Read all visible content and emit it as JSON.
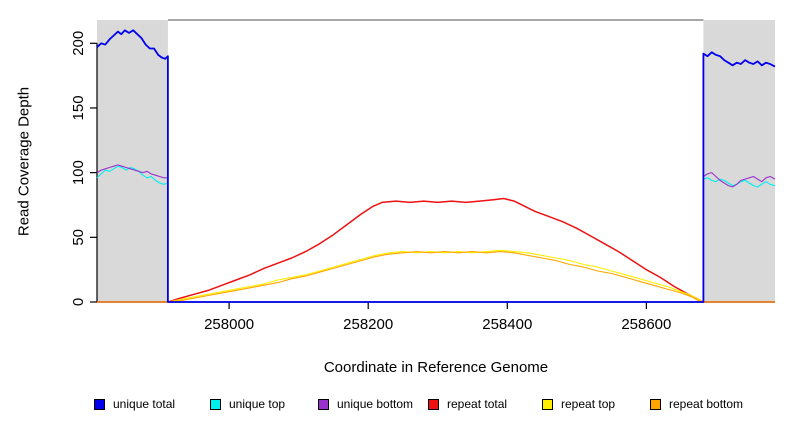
{
  "chart_data": {
    "type": "line",
    "title": "",
    "xlabel": "Coordinate in Reference Genome",
    "ylabel": "Read Coverage Depth",
    "xlim": [
      257810,
      258785
    ],
    "ylim": [
      0,
      218
    ],
    "x_ticks": [
      258000,
      258200,
      258400,
      258600
    ],
    "y_ticks": [
      0,
      50,
      100,
      150,
      200
    ],
    "grid": false,
    "legend_position": "bottom",
    "axis_color": "#000000",
    "top_border_color": "#8a8a8a",
    "shaded_regions": [
      {
        "x0": 257810,
        "x1": 257912,
        "color": "#d9d9d9"
      },
      {
        "x0": 258682,
        "x1": 258785,
        "color": "#d9d9d9"
      }
    ],
    "series": [
      {
        "name": "unique total",
        "color": "#0000ee",
        "points": [
          [
            257810,
            197
          ],
          [
            257816,
            200
          ],
          [
            257822,
            199
          ],
          [
            257828,
            203
          ],
          [
            257834,
            206
          ],
          [
            257840,
            209
          ],
          [
            257845,
            207
          ],
          [
            257850,
            210
          ],
          [
            257856,
            208
          ],
          [
            257862,
            210
          ],
          [
            257868,
            207
          ],
          [
            257874,
            204
          ],
          [
            257880,
            199
          ],
          [
            257886,
            196
          ],
          [
            257892,
            196
          ],
          [
            257898,
            191
          ],
          [
            257903,
            189
          ],
          [
            257908,
            188
          ],
          [
            257912,
            190
          ],
          [
            257912,
            0
          ],
          [
            258682,
            0
          ],
          [
            258682,
            192
          ],
          [
            258688,
            190
          ],
          [
            258694,
            193
          ],
          [
            258700,
            191
          ],
          [
            258706,
            190
          ],
          [
            258712,
            187
          ],
          [
            258718,
            185
          ],
          [
            258724,
            183
          ],
          [
            258730,
            185
          ],
          [
            258736,
            184
          ],
          [
            258742,
            187
          ],
          [
            258748,
            185
          ],
          [
            258754,
            184
          ],
          [
            258760,
            186
          ],
          [
            258766,
            183
          ],
          [
            258772,
            185
          ],
          [
            258778,
            184
          ],
          [
            258785,
            182
          ]
        ]
      },
      {
        "name": "unique top",
        "color": "#00eeee",
        "points": [
          [
            257810,
            96
          ],
          [
            257816,
            99
          ],
          [
            257822,
            102
          ],
          [
            257828,
            101
          ],
          [
            257834,
            103
          ],
          [
            257840,
            105
          ],
          [
            257846,
            104
          ],
          [
            257852,
            102
          ],
          [
            257858,
            104
          ],
          [
            257864,
            103
          ],
          [
            257870,
            101
          ],
          [
            257876,
            98
          ],
          [
            257882,
            96
          ],
          [
            257888,
            97
          ],
          [
            257894,
            94
          ],
          [
            257900,
            92
          ],
          [
            257906,
            91
          ],
          [
            257912,
            92
          ],
          [
            257912,
            0
          ],
          [
            258682,
            0
          ],
          [
            258682,
            95
          ],
          [
            258688,
            96
          ],
          [
            258694,
            94
          ],
          [
            258700,
            93
          ],
          [
            258706,
            95
          ],
          [
            258712,
            94
          ],
          [
            258718,
            92
          ],
          [
            258724,
            90
          ],
          [
            258730,
            91
          ],
          [
            258736,
            93
          ],
          [
            258742,
            94
          ],
          [
            258748,
            92
          ],
          [
            258754,
            90
          ],
          [
            258760,
            89
          ],
          [
            258766,
            91
          ],
          [
            258772,
            93
          ],
          [
            258778,
            91
          ],
          [
            258785,
            90
          ]
        ]
      },
      {
        "name": "unique bottom",
        "color": "#9932cc",
        "points": [
          [
            257810,
            100
          ],
          [
            257816,
            102
          ],
          [
            257822,
            103
          ],
          [
            257828,
            104
          ],
          [
            257834,
            105
          ],
          [
            257840,
            106
          ],
          [
            257846,
            105
          ],
          [
            257852,
            104
          ],
          [
            257858,
            103
          ],
          [
            257864,
            102
          ],
          [
            257870,
            101
          ],
          [
            257876,
            100
          ],
          [
            257882,
            101
          ],
          [
            257888,
            99
          ],
          [
            257894,
            98
          ],
          [
            257900,
            97
          ],
          [
            257906,
            96
          ],
          [
            257912,
            96
          ],
          [
            257912,
            0
          ],
          [
            258682,
            0
          ],
          [
            258682,
            97
          ],
          [
            258688,
            99
          ],
          [
            258694,
            100
          ],
          [
            258700,
            97
          ],
          [
            258706,
            94
          ],
          [
            258712,
            92
          ],
          [
            258718,
            90
          ],
          [
            258724,
            89
          ],
          [
            258730,
            91
          ],
          [
            258736,
            94
          ],
          [
            258742,
            95
          ],
          [
            258748,
            96
          ],
          [
            258754,
            97
          ],
          [
            258760,
            95
          ],
          [
            258766,
            93
          ],
          [
            258772,
            96
          ],
          [
            258778,
            97
          ],
          [
            258785,
            95
          ]
        ]
      },
      {
        "name": "repeat total",
        "color": "#ee1111",
        "points": [
          [
            257810,
            0
          ],
          [
            257912,
            0
          ],
          [
            257930,
            3
          ],
          [
            257950,
            6
          ],
          [
            257970,
            9
          ],
          [
            257990,
            13
          ],
          [
            258010,
            17
          ],
          [
            258030,
            21
          ],
          [
            258050,
            26
          ],
          [
            258070,
            30
          ],
          [
            258090,
            34
          ],
          [
            258110,
            39
          ],
          [
            258130,
            45
          ],
          [
            258150,
            52
          ],
          [
            258170,
            60
          ],
          [
            258190,
            68
          ],
          [
            258207,
            74
          ],
          [
            258220,
            77
          ],
          [
            258240,
            78
          ],
          [
            258260,
            77
          ],
          [
            258280,
            78
          ],
          [
            258300,
            77
          ],
          [
            258320,
            78
          ],
          [
            258340,
            77
          ],
          [
            258360,
            78
          ],
          [
            258380,
            79
          ],
          [
            258395,
            80
          ],
          [
            258410,
            78
          ],
          [
            258425,
            74
          ],
          [
            258440,
            70
          ],
          [
            258460,
            66
          ],
          [
            258480,
            62
          ],
          [
            258500,
            57
          ],
          [
            258520,
            51
          ],
          [
            258540,
            45
          ],
          [
            258560,
            39
          ],
          [
            258580,
            32
          ],
          [
            258600,
            25
          ],
          [
            258620,
            19
          ],
          [
            258640,
            12
          ],
          [
            258660,
            6
          ],
          [
            258675,
            2
          ],
          [
            258682,
            0
          ],
          [
            258785,
            0
          ]
        ]
      },
      {
        "name": "repeat top",
        "color": "#ffee00",
        "points": [
          [
            257810,
            0
          ],
          [
            257912,
            0
          ],
          [
            257930,
            2
          ],
          [
            257950,
            4
          ],
          [
            257970,
            6
          ],
          [
            257990,
            8
          ],
          [
            258010,
            10
          ],
          [
            258030,
            12
          ],
          [
            258050,
            14
          ],
          [
            258070,
            17
          ],
          [
            258090,
            19
          ],
          [
            258110,
            21
          ],
          [
            258130,
            24
          ],
          [
            258150,
            27
          ],
          [
            258170,
            30
          ],
          [
            258190,
            33
          ],
          [
            258210,
            36
          ],
          [
            258230,
            38
          ],
          [
            258250,
            39
          ],
          [
            258270,
            38
          ],
          [
            258290,
            39
          ],
          [
            258310,
            38
          ],
          [
            258330,
            39
          ],
          [
            258350,
            38
          ],
          [
            258370,
            39
          ],
          [
            258390,
            40
          ],
          [
            258410,
            39
          ],
          [
            258430,
            38
          ],
          [
            258450,
            36
          ],
          [
            258470,
            34
          ],
          [
            258490,
            32
          ],
          [
            258510,
            29
          ],
          [
            258530,
            27
          ],
          [
            258550,
            24
          ],
          [
            258570,
            21
          ],
          [
            258590,
            18
          ],
          [
            258610,
            15
          ],
          [
            258630,
            12
          ],
          [
            258650,
            8
          ],
          [
            258665,
            5
          ],
          [
            258675,
            2
          ],
          [
            258682,
            0
          ],
          [
            258785,
            0
          ]
        ]
      },
      {
        "name": "repeat bottom",
        "color": "#ffa500",
        "points": [
          [
            257810,
            0
          ],
          [
            257912,
            0
          ],
          [
            257930,
            1
          ],
          [
            257950,
            3
          ],
          [
            257970,
            5
          ],
          [
            257990,
            7
          ],
          [
            258010,
            9
          ],
          [
            258030,
            11
          ],
          [
            258050,
            13
          ],
          [
            258070,
            15
          ],
          [
            258090,
            18
          ],
          [
            258110,
            20
          ],
          [
            258130,
            23
          ],
          [
            258150,
            26
          ],
          [
            258170,
            29
          ],
          [
            258190,
            32
          ],
          [
            258210,
            35
          ],
          [
            258230,
            37
          ],
          [
            258250,
            38
          ],
          [
            258270,
            39
          ],
          [
            258290,
            38
          ],
          [
            258310,
            39
          ],
          [
            258330,
            38
          ],
          [
            258350,
            39
          ],
          [
            258370,
            38
          ],
          [
            258390,
            39
          ],
          [
            258410,
            38
          ],
          [
            258430,
            36
          ],
          [
            258450,
            34
          ],
          [
            258470,
            32
          ],
          [
            258490,
            29
          ],
          [
            258510,
            27
          ],
          [
            258530,
            24
          ],
          [
            258550,
            22
          ],
          [
            258570,
            19
          ],
          [
            258590,
            16
          ],
          [
            258610,
            13
          ],
          [
            258630,
            10
          ],
          [
            258650,
            7
          ],
          [
            258665,
            4
          ],
          [
            258675,
            1
          ],
          [
            258682,
            0
          ],
          [
            258785,
            0
          ]
        ]
      }
    ]
  }
}
